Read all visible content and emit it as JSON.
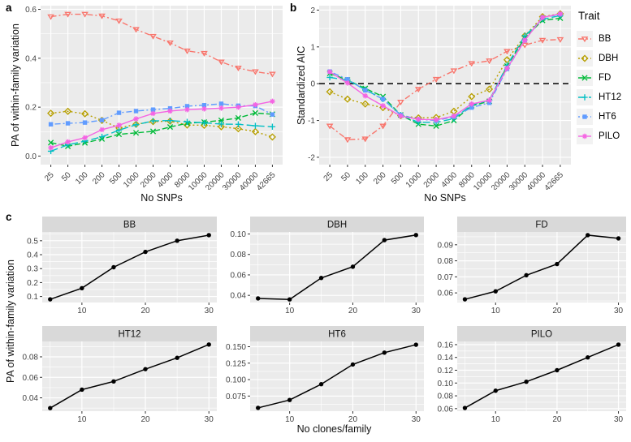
{
  "theme": {
    "panel_bg": "#EBEBEB",
    "strip_bg": "#D9D9D9",
    "grid_color": "#FFFFFF",
    "axis_text_color": "#444444",
    "tick_color": "#333333",
    "refline_color": "#000000",
    "legend_key_bg": "#F2F2F2"
  },
  "panels": {
    "a": {
      "label": "a",
      "y_title": "PA of within-family variation",
      "x_title": "No SNPs"
    },
    "b": {
      "label": "b",
      "y_title": "Standardized AIC",
      "x_title": "No SNPs"
    },
    "c": {
      "label": "c",
      "y_title": "PA of within-family variation",
      "x_title": "No clones/family"
    }
  },
  "legend": {
    "title": "Trait",
    "position": "right",
    "entries": [
      "BB",
      "DBH",
      "FD",
      "HT12",
      "HT6",
      "PILO"
    ]
  },
  "chart_data": [
    {
      "id": "panel_a",
      "type": "line",
      "xlabel": "No SNPs",
      "ylabel": "PA of within-family variation",
      "grid": true,
      "x_categories": [
        "25",
        "50",
        "100",
        "200",
        "500",
        "1000",
        "2000",
        "4000",
        "8000",
        "10000",
        "20000",
        "30000",
        "40000",
        "42665"
      ],
      "ylim": [
        -0.035,
        0.615
      ],
      "yticks": [
        {
          "v": 0.0,
          "label": "0.0"
        },
        {
          "v": 0.2,
          "label": "0.2"
        },
        {
          "v": 0.4,
          "label": "0.4"
        },
        {
          "v": 0.6,
          "label": "0.6"
        }
      ],
      "series": [
        {
          "name": "BB",
          "color": "#F8766D",
          "dash": "7 3 2 3",
          "marker": "triangle-down-open",
          "values": [
            0.57,
            0.58,
            0.58,
            0.573,
            0.553,
            0.518,
            0.49,
            0.463,
            0.43,
            0.42,
            0.385,
            0.36,
            0.345,
            0.335
          ]
        },
        {
          "name": "DBH",
          "color": "#B79F00",
          "dash": "2 3",
          "marker": "diamond-open",
          "values": [
            0.175,
            0.183,
            0.173,
            0.146,
            0.115,
            0.13,
            0.141,
            0.143,
            0.127,
            0.126,
            0.12,
            0.112,
            0.1,
            0.078
          ]
        },
        {
          "name": "FD",
          "color": "#00BA38",
          "dash": "7 3",
          "marker": "x",
          "values": [
            0.055,
            0.04,
            0.054,
            0.07,
            0.089,
            0.095,
            0.101,
            0.119,
            0.134,
            0.139,
            0.146,
            0.156,
            0.176,
            0.171
          ]
        },
        {
          "name": "HT12",
          "color": "#00BFC4",
          "dash": "9 4",
          "marker": "plus",
          "values": [
            0.02,
            0.046,
            0.061,
            0.079,
            0.106,
            0.128,
            0.144,
            0.145,
            0.14,
            0.136,
            0.131,
            0.13,
            0.124,
            0.12
          ]
        },
        {
          "name": "HT6",
          "color": "#619CFF",
          "dash": "2 3 7 3",
          "marker": "square-filled",
          "values": [
            0.13,
            0.134,
            0.137,
            0.147,
            0.177,
            0.184,
            0.19,
            0.195,
            0.204,
            0.208,
            0.214,
            0.206,
            0.205,
            0.17
          ]
        },
        {
          "name": "PILO",
          "color": "#F564E3",
          "dash": "",
          "marker": "asterisk",
          "values": [
            0.034,
            0.058,
            0.075,
            0.108,
            0.126,
            0.152,
            0.174,
            0.184,
            0.19,
            0.193,
            0.196,
            0.2,
            0.21,
            0.224
          ]
        }
      ]
    },
    {
      "id": "panel_b",
      "type": "line",
      "xlabel": "No SNPs",
      "ylabel": "Standardized AIC",
      "grid": true,
      "refline": 0,
      "x_categories": [
        "25",
        "50",
        "100",
        "200",
        "500",
        "1000",
        "2000",
        "4000",
        "8000",
        "10000",
        "20000",
        "30000",
        "40000",
        "42665"
      ],
      "ylim": [
        -2.2,
        2.12
      ],
      "yticks": [
        {
          "v": -2,
          "label": "-2"
        },
        {
          "v": -1,
          "label": "-1"
        },
        {
          "v": 0,
          "label": "0"
        },
        {
          "v": 1,
          "label": "1"
        },
        {
          "v": 2,
          "label": "2"
        }
      ],
      "series": [
        {
          "name": "BB",
          "color": "#F8766D",
          "dash": "7 3 2 3",
          "marker": "triangle-down-open",
          "values": [
            -1.15,
            -1.52,
            -1.5,
            -1.15,
            -0.5,
            -0.15,
            0.12,
            0.35,
            0.55,
            0.62,
            0.88,
            1.05,
            1.18,
            1.2
          ]
        },
        {
          "name": "DBH",
          "color": "#B79F00",
          "dash": "2 3",
          "marker": "diamond-open",
          "values": [
            -0.22,
            -0.42,
            -0.55,
            -0.65,
            -0.87,
            -0.93,
            -0.92,
            -0.75,
            -0.35,
            -0.15,
            0.65,
            1.3,
            1.82,
            1.9
          ]
        },
        {
          "name": "FD",
          "color": "#00BA38",
          "dash": "7 3",
          "marker": "x",
          "values": [
            0.28,
            0.1,
            -0.13,
            -0.35,
            -0.85,
            -1.1,
            -1.15,
            -1.0,
            -0.6,
            -0.48,
            0.48,
            1.25,
            1.72,
            1.78
          ]
        },
        {
          "name": "HT12",
          "color": "#00BFC4",
          "dash": "9 4",
          "marker": "plus",
          "values": [
            0.17,
            0.1,
            -0.16,
            -0.42,
            -0.85,
            -1.05,
            -1.05,
            -0.95,
            -0.58,
            -0.45,
            0.5,
            1.3,
            1.75,
            1.85
          ]
        },
        {
          "name": "HT6",
          "color": "#619CFF",
          "dash": "2 3 7 3",
          "marker": "square-filled",
          "values": [
            0.33,
            0.12,
            -0.18,
            -0.42,
            -0.85,
            -0.97,
            -1.0,
            -0.9,
            -0.65,
            -0.52,
            0.4,
            1.18,
            1.8,
            1.88
          ]
        },
        {
          "name": "PILO",
          "color": "#F564E3",
          "dash": "",
          "marker": "asterisk",
          "values": [
            0.32,
            0.02,
            -0.33,
            -0.6,
            -0.88,
            -0.97,
            -0.98,
            -0.88,
            -0.55,
            -0.45,
            0.42,
            1.18,
            1.8,
            1.9
          ]
        }
      ]
    },
    {
      "id": "panel_c_facets",
      "type": "line",
      "xlabel": "No clones/family",
      "ylabel": "PA of within-family variation",
      "grid": true,
      "x": [
        5,
        10,
        15,
        20,
        25,
        30
      ],
      "xlim": [
        3.75,
        31.25
      ],
      "xticks": [
        {
          "v": 10,
          "label": "10"
        },
        {
          "v": 20,
          "label": "20"
        },
        {
          "v": 30,
          "label": "30"
        }
      ],
      "xminor": [
        5,
        15,
        25
      ],
      "color": "#000000",
      "marker": "circle-filled",
      "facets": [
        {
          "label": "BB",
          "ylim": [
            0.057,
            0.563
          ],
          "yticks": [
            {
              "v": 0.1,
              "label": "0.1"
            },
            {
              "v": 0.2,
              "label": "0.2"
            },
            {
              "v": 0.3,
              "label": "0.3"
            },
            {
              "v": 0.4,
              "label": "0.4"
            },
            {
              "v": 0.5,
              "label": "0.5"
            }
          ],
          "values": [
            0.08,
            0.16,
            0.31,
            0.42,
            0.5,
            0.54
          ]
        },
        {
          "label": "DBH",
          "ylim": [
            0.033,
            0.102
          ],
          "yticks": [
            {
              "v": 0.04,
              "label": "0.04"
            },
            {
              "v": 0.06,
              "label": "0.06"
            },
            {
              "v": 0.08,
              "label": "0.08"
            },
            {
              "v": 0.1,
              "label": "0.10"
            }
          ],
          "values": [
            0.037,
            0.036,
            0.057,
            0.068,
            0.094,
            0.099
          ]
        },
        {
          "label": "FD",
          "ylim": [
            0.054,
            0.098
          ],
          "yticks": [
            {
              "v": 0.06,
              "label": "0.06"
            },
            {
              "v": 0.07,
              "label": "0.07"
            },
            {
              "v": 0.08,
              "label": "0.08"
            },
            {
              "v": 0.09,
              "label": "0.09"
            }
          ],
          "values": [
            0.056,
            0.061,
            0.071,
            0.078,
            0.096,
            0.094
          ]
        },
        {
          "label": "HT12",
          "ylim": [
            0.027,
            0.095
          ],
          "yticks": [
            {
              "v": 0.04,
              "label": "0.04"
            },
            {
              "v": 0.06,
              "label": "0.06"
            },
            {
              "v": 0.08,
              "label": "0.08"
            }
          ],
          "values": [
            0.03,
            0.048,
            0.056,
            0.068,
            0.079,
            0.092
          ]
        },
        {
          "label": "HT6",
          "ylim": [
            0.052,
            0.158
          ],
          "yticks": [
            {
              "v": 0.075,
              "label": "0.075"
            },
            {
              "v": 0.1,
              "label": "0.100"
            },
            {
              "v": 0.125,
              "label": "0.125"
            },
            {
              "v": 0.15,
              "label": "0.150"
            }
          ],
          "values": [
            0.057,
            0.069,
            0.093,
            0.123,
            0.141,
            0.153
          ]
        },
        {
          "label": "PILO",
          "ylim": [
            0.056,
            0.165
          ],
          "yticks": [
            {
              "v": 0.06,
              "label": "0.06"
            },
            {
              "v": 0.08,
              "label": "0.08"
            },
            {
              "v": 0.1,
              "label": "0.10"
            },
            {
              "v": 0.12,
              "label": "0.12"
            },
            {
              "v": 0.14,
              "label": "0.14"
            },
            {
              "v": 0.16,
              "label": "0.16"
            }
          ],
          "values": [
            0.061,
            0.088,
            0.102,
            0.12,
            0.14,
            0.16
          ]
        }
      ]
    }
  ]
}
